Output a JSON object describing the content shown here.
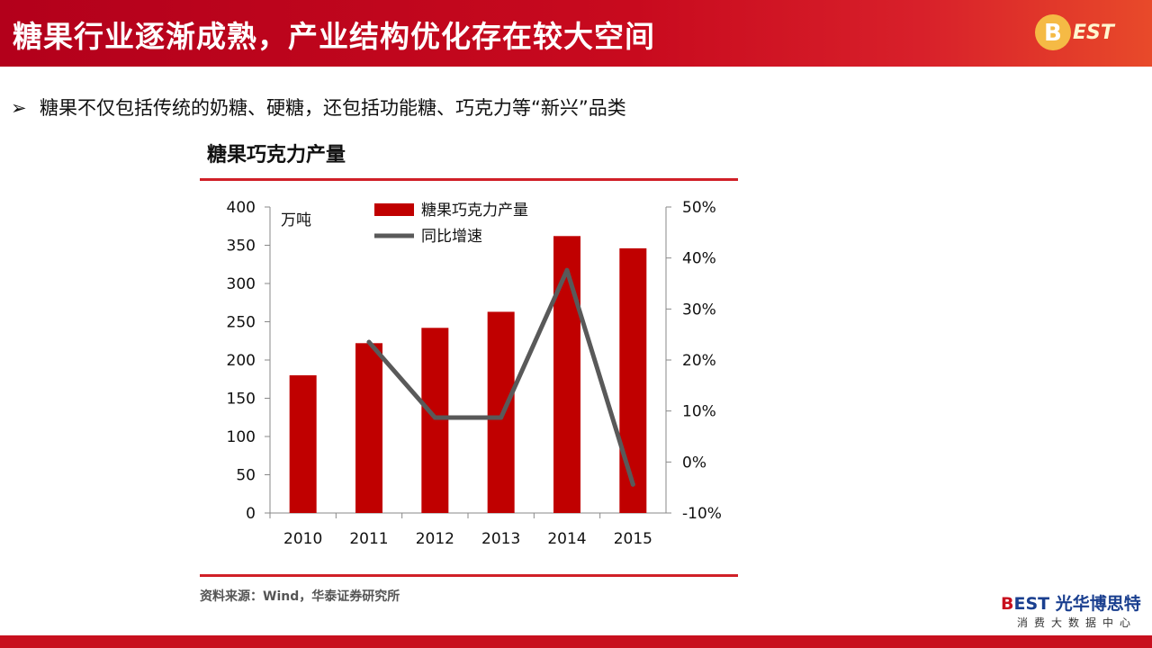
{
  "header": {
    "title": "糖果行业逐渐成熟，产业结构优化存在较大空间",
    "logo_text": "BEST"
  },
  "bullet": {
    "marker": "➢",
    "text": "糖果不仅包括传统的奶糖、硬糖，还包括功能糖、巧克力等“新兴”品类"
  },
  "chart_title": "糖果巧克力产量",
  "source": "资料来源：Wind，华泰证券研究所",
  "brand": {
    "b_letter": "B",
    "est": "EST",
    "name": "光华博思特",
    "subtitle": "消费大数据中心"
  },
  "colors": {
    "bar": "#c00000",
    "line": "#595959",
    "accent": "#d02027"
  },
  "chart_data": {
    "type": "bar",
    "categories": [
      "2010",
      "2011",
      "2012",
      "2013",
      "2014",
      "2015"
    ],
    "unit_label": "万吨",
    "series": [
      {
        "name": "糖果巧克力产量",
        "type": "bar",
        "axis": "left",
        "values": [
          180,
          222,
          242,
          263,
          362,
          346
        ]
      },
      {
        "name": "同比增速",
        "type": "line",
        "axis": "right",
        "values": [
          null,
          23.5,
          8.7,
          8.7,
          37.6,
          -4.4
        ]
      }
    ],
    "y_left": {
      "min": 0,
      "max": 400,
      "ticks": [
        "0",
        "50",
        "100",
        "150",
        "200",
        "250",
        "300",
        "350",
        "400"
      ]
    },
    "y_right": {
      "min": -10,
      "max": 50,
      "ticks": [
        "-10%",
        "0%",
        "10%",
        "20%",
        "30%",
        "40%",
        "50%"
      ]
    },
    "legend_position": "top-center",
    "grid": false
  }
}
